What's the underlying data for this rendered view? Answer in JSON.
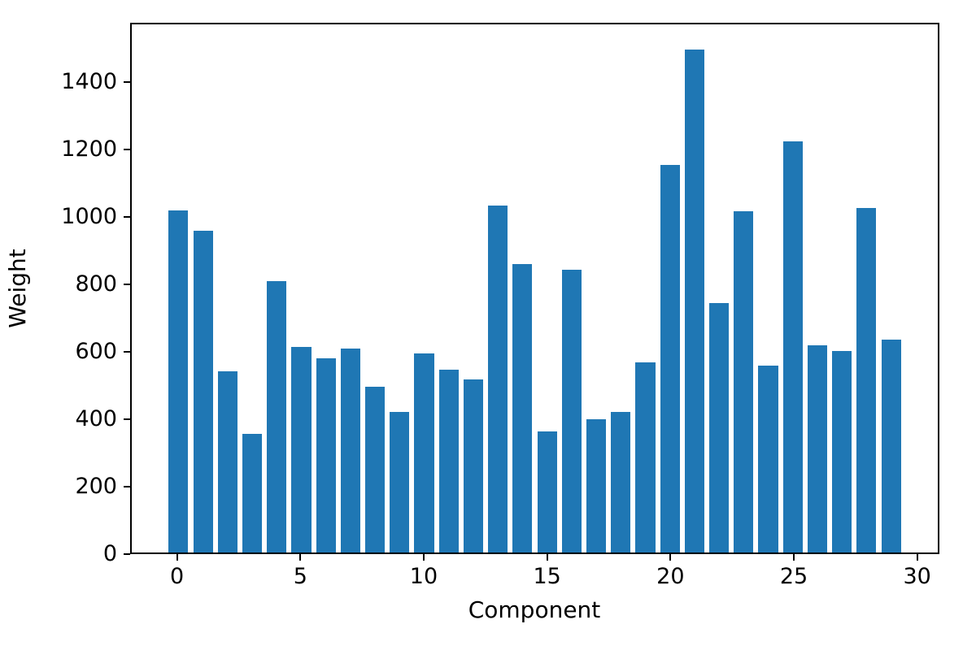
{
  "chart_data": {
    "type": "bar",
    "title": "",
    "xlabel": "Component",
    "ylabel": "Weight",
    "categories": [
      0,
      1,
      2,
      3,
      4,
      5,
      6,
      7,
      8,
      9,
      10,
      11,
      12,
      13,
      14,
      15,
      16,
      17,
      18,
      19,
      20,
      21,
      22,
      23,
      24,
      25,
      26,
      27,
      28,
      29
    ],
    "values": [
      1020,
      960,
      540,
      355,
      810,
      612,
      580,
      608,
      495,
      420,
      593,
      545,
      515,
      1035,
      860,
      360,
      843,
      397,
      420,
      568,
      1155,
      1500,
      743,
      1018,
      557,
      1225,
      618,
      602,
      1028,
      635
    ],
    "bar_color": "#1f77b4",
    "bar_width": 0.8,
    "xlim": [
      -1.9,
      30.9
    ],
    "ylim": [
      0,
      1575
    ],
    "x_ticks": [
      0,
      5,
      10,
      15,
      20,
      25,
      30
    ],
    "y_ticks": [
      0,
      200,
      400,
      600,
      800,
      1000,
      1200,
      1400
    ],
    "grid": false,
    "legend": "none"
  }
}
